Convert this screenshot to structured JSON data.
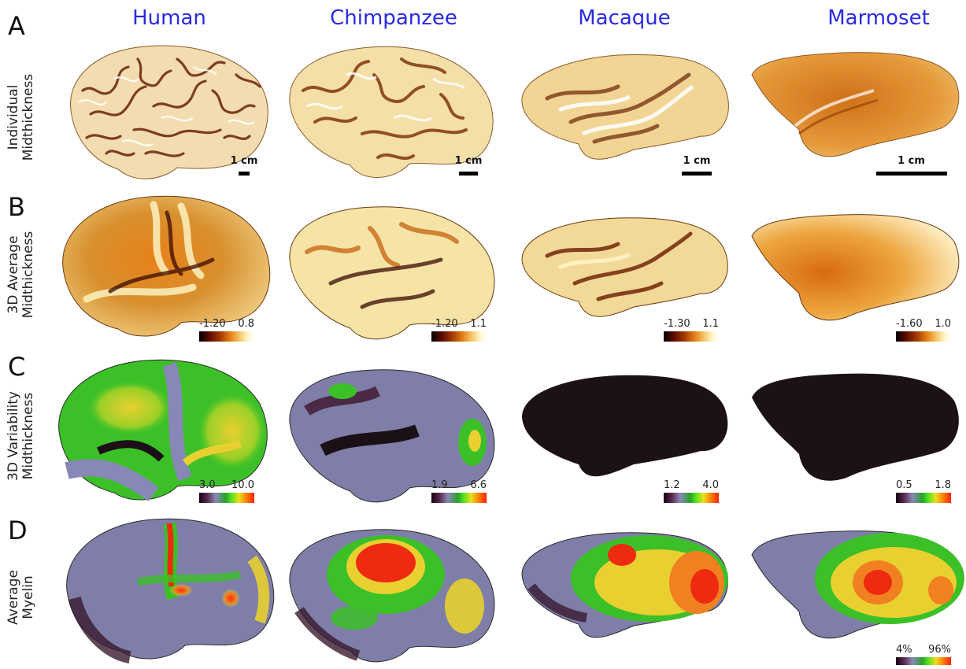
{
  "columns": [
    {
      "name": "Human"
    },
    {
      "name": "Chimpanzee"
    },
    {
      "name": "Macaque"
    },
    {
      "name": "Marmoset"
    }
  ],
  "rows": [
    {
      "letter": "A",
      "label_line1": "Individual",
      "label_line2": "Midthickness"
    },
    {
      "letter": "B",
      "label_line1": "3D Average",
      "label_line2": "Midthickness"
    },
    {
      "letter": "C",
      "label_line1": "3D Variability",
      "label_line2": "Midthickness"
    },
    {
      "letter": "D",
      "label_line1": "Average",
      "label_line2": "Myelin"
    }
  ],
  "scale_bars": [
    "1 cm",
    "1 cm",
    "1 cm",
    "1 cm"
  ],
  "colorbars_B": [
    {
      "min": "-1.20",
      "max": "0.8"
    },
    {
      "min": "-1.20",
      "max": "1.1"
    },
    {
      "min": "-1.30",
      "max": "1.1"
    },
    {
      "min": "-1.60",
      "max": "1.0"
    }
  ],
  "colorbars_C": [
    {
      "min": "3.0",
      "max": "10.0"
    },
    {
      "min": "1.9",
      "max": "6.6"
    },
    {
      "min": "1.2",
      "max": "4.0"
    },
    {
      "min": "0.5",
      "max": "1.8"
    }
  ],
  "colorbar_D": {
    "min": "4%",
    "max": "96%"
  },
  "colors": {
    "title": "#2a2ae0",
    "heat_mid": "#e07a10",
    "heat_light": "#f8e6a8",
    "dark_sulcus": "#4a1200",
    "purple": "#7e7ea8",
    "green": "#3cc028",
    "yellow": "#e8d030",
    "red": "#ee2a10",
    "black": "#1a1016"
  }
}
